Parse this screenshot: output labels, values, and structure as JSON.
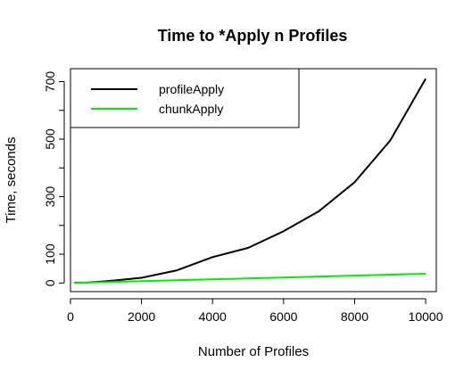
{
  "chart_data": {
    "type": "line",
    "title": "Time to *Apply n Profiles",
    "xlabel": "Number of Profiles",
    "ylabel": "Time, seconds",
    "xlim": [
      0,
      10300
    ],
    "ylim": [
      -30,
      745
    ],
    "x_ticks": [
      0,
      2000,
      4000,
      6000,
      8000,
      10000
    ],
    "x_tick_labels": [
      "0",
      "2000",
      "4000",
      "6000",
      "8000",
      "10000"
    ],
    "y_ticks": [
      0,
      100,
      300,
      500,
      700
    ],
    "y_tick_labels": [
      "0",
      "100",
      "300",
      "500",
      "700"
    ],
    "y_minor_ticks": [
      200,
      400,
      600
    ],
    "grid": false,
    "legend_position": "top-left",
    "series": [
      {
        "name": "profileApply",
        "color": "#000000",
        "x": [
          100,
          500,
          1000,
          2000,
          3000,
          4000,
          5000,
          6000,
          7000,
          8000,
          9000,
          10000
        ],
        "y": [
          1,
          2,
          6,
          18,
          44,
          90,
          122,
          180,
          250,
          350,
          495,
          710
        ]
      },
      {
        "name": "chunkApply",
        "color": "#00ee00",
        "x": [
          100,
          10000
        ],
        "y": [
          0,
          32
        ]
      }
    ]
  }
}
